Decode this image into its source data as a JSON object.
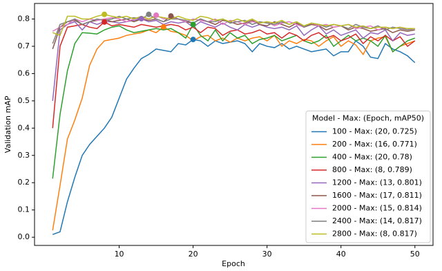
{
  "chart_data": {
    "type": "line",
    "xlabel": "Epoch",
    "ylabel": "Validation mAP",
    "legend_title": "Model - Max: (Epoch, mAP50)",
    "legend": "lower right",
    "grid": false,
    "mark_max": true,
    "x": [
      1,
      2,
      3,
      4,
      5,
      6,
      7,
      8,
      9,
      10,
      11,
      12,
      13,
      14,
      15,
      16,
      17,
      18,
      19,
      20,
      21,
      22,
      23,
      24,
      25,
      26,
      27,
      28,
      29,
      30,
      31,
      32,
      33,
      34,
      35,
      36,
      37,
      38,
      39,
      40,
      41,
      42,
      43,
      44,
      45,
      46,
      47,
      48,
      49,
      50
    ],
    "xlim": [
      -1.45,
      52.45
    ],
    "xticks": [
      10,
      20,
      30,
      40,
      50
    ],
    "ylim": [
      -0.03,
      0.857
    ],
    "yticks": [
      {
        "value": 0,
        "label": "0.0"
      },
      0.1,
      0.2,
      0.3,
      0.4,
      0.5,
      0.6,
      0.7,
      0.8
    ],
    "series": [
      {
        "name": "100 - Max: (20, 0.725)",
        "color": "#1f77b4",
        "values": [
          0.01,
          0.02,
          0.13,
          0.22,
          0.3,
          0.34,
          0.37,
          0.4,
          0.44,
          0.51,
          0.58,
          0.62,
          0.655,
          0.67,
          0.69,
          0.685,
          0.68,
          0.71,
          0.705,
          0.725,
          0.72,
          0.7,
          0.72,
          0.71,
          0.715,
          0.72,
          0.71,
          0.68,
          0.71,
          0.7,
          0.695,
          0.71,
          0.69,
          0.7,
          0.69,
          0.68,
          0.685,
          0.69,
          0.665,
          0.68,
          0.68,
          0.72,
          0.7,
          0.66,
          0.655,
          0.71,
          0.69,
          0.68,
          0.665,
          0.64
        ]
      },
      {
        "name": "200 - Max: (16, 0.771)",
        "color": "#ff7f0e",
        "values": [
          0.025,
          0.19,
          0.36,
          0.43,
          0.51,
          0.63,
          0.69,
          0.72,
          0.725,
          0.73,
          0.74,
          0.745,
          0.75,
          0.76,
          0.75,
          0.771,
          0.755,
          0.75,
          0.74,
          0.72,
          0.735,
          0.74,
          0.72,
          0.73,
          0.715,
          0.73,
          0.72,
          0.73,
          0.735,
          0.72,
          0.74,
          0.7,
          0.72,
          0.71,
          0.725,
          0.72,
          0.7,
          0.72,
          0.735,
          0.7,
          0.72,
          0.705,
          0.67,
          0.72,
          0.73,
          0.735,
          0.68,
          0.7,
          0.71,
          0.72
        ]
      },
      {
        "name": "400 - Max: (20, 0.78)",
        "color": "#2ca02c",
        "values": [
          0.215,
          0.45,
          0.61,
          0.71,
          0.75,
          0.748,
          0.745,
          0.76,
          0.77,
          0.775,
          0.76,
          0.75,
          0.755,
          0.76,
          0.765,
          0.76,
          0.765,
          0.75,
          0.73,
          0.78,
          0.74,
          0.72,
          0.76,
          0.72,
          0.75,
          0.73,
          0.74,
          0.71,
          0.725,
          0.73,
          0.74,
          0.72,
          0.73,
          0.74,
          0.72,
          0.71,
          0.72,
          0.74,
          0.7,
          0.72,
          0.74,
          0.72,
          0.73,
          0.72,
          0.7,
          0.74,
          0.68,
          0.7,
          0.72,
          0.73
        ]
      },
      {
        "name": "800 - Max: (8, 0.789)",
        "color": "#d62728",
        "values": [
          0.4,
          0.7,
          0.77,
          0.775,
          0.78,
          0.77,
          0.765,
          0.789,
          0.775,
          0.78,
          0.775,
          0.77,
          0.78,
          0.775,
          0.77,
          0.775,
          0.78,
          0.775,
          0.76,
          0.77,
          0.75,
          0.77,
          0.765,
          0.74,
          0.755,
          0.76,
          0.745,
          0.75,
          0.76,
          0.745,
          0.75,
          0.73,
          0.75,
          0.74,
          0.72,
          0.74,
          0.75,
          0.73,
          0.74,
          0.72,
          0.73,
          0.745,
          0.71,
          0.735,
          0.72,
          0.74,
          0.72,
          0.735,
          0.7,
          0.72
        ]
      },
      {
        "name": "1200 - Max: (13, 0.801)",
        "color": "#9467bd",
        "values": [
          0.5,
          0.76,
          0.78,
          0.79,
          0.76,
          0.79,
          0.78,
          0.79,
          0.79,
          0.785,
          0.79,
          0.795,
          0.801,
          0.79,
          0.795,
          0.78,
          0.79,
          0.785,
          0.79,
          0.77,
          0.79,
          0.78,
          0.77,
          0.785,
          0.77,
          0.76,
          0.78,
          0.77,
          0.78,
          0.77,
          0.765,
          0.77,
          0.76,
          0.775,
          0.74,
          0.76,
          0.775,
          0.745,
          0.76,
          0.74,
          0.75,
          0.76,
          0.73,
          0.75,
          0.745,
          0.76,
          0.72,
          0.75,
          0.74,
          0.745
        ]
      },
      {
        "name": "1600 - Max: (17, 0.811)",
        "color": "#8c564b",
        "values": [
          0.69,
          0.77,
          0.79,
          0.795,
          0.78,
          0.79,
          0.795,
          0.8,
          0.79,
          0.795,
          0.8,
          0.79,
          0.8,
          0.795,
          0.8,
          0.79,
          0.811,
          0.8,
          0.79,
          0.785,
          0.8,
          0.79,
          0.78,
          0.795,
          0.79,
          0.78,
          0.785,
          0.795,
          0.78,
          0.775,
          0.79,
          0.78,
          0.77,
          0.785,
          0.77,
          0.78,
          0.775,
          0.76,
          0.77,
          0.775,
          0.76,
          0.77,
          0.765,
          0.755,
          0.76,
          0.765,
          0.75,
          0.76,
          0.755,
          0.76
        ]
      },
      {
        "name": "2000 - Max: (15, 0.814)",
        "color": "#e377c2",
        "values": [
          0.755,
          0.77,
          0.78,
          0.8,
          0.79,
          0.8,
          0.795,
          0.8,
          0.805,
          0.8,
          0.79,
          0.8,
          0.805,
          0.8,
          0.814,
          0.8,
          0.805,
          0.8,
          0.79,
          0.8,
          0.795,
          0.79,
          0.8,
          0.78,
          0.795,
          0.79,
          0.78,
          0.79,
          0.785,
          0.79,
          0.775,
          0.785,
          0.79,
          0.78,
          0.77,
          0.785,
          0.775,
          0.78,
          0.77,
          0.775,
          0.78,
          0.765,
          0.77,
          0.775,
          0.76,
          0.77,
          0.765,
          0.77,
          0.76,
          0.765
        ]
      },
      {
        "name": "2400 - Max: (14, 0.817)",
        "color": "#7f7f7f",
        "values": [
          0.71,
          0.78,
          0.79,
          0.8,
          0.78,
          0.79,
          0.8,
          0.795,
          0.8,
          0.81,
          0.8,
          0.805,
          0.8,
          0.817,
          0.8,
          0.79,
          0.8,
          0.8,
          0.795,
          0.785,
          0.8,
          0.79,
          0.79,
          0.8,
          0.785,
          0.79,
          0.795,
          0.78,
          0.79,
          0.785,
          0.78,
          0.79,
          0.78,
          0.79,
          0.77,
          0.785,
          0.78,
          0.77,
          0.78,
          0.775,
          0.765,
          0.78,
          0.77,
          0.765,
          0.775,
          0.76,
          0.77,
          0.765,
          0.76,
          0.765
        ]
      },
      {
        "name": "2800 - Max: (8, 0.817)",
        "color": "#bcbd22",
        "values": [
          0.75,
          0.74,
          0.81,
          0.81,
          0.8,
          0.8,
          0.81,
          0.817,
          0.81,
          0.805,
          0.81,
          0.8,
          0.81,
          0.8,
          0.81,
          0.805,
          0.8,
          0.81,
          0.8,
          0.795,
          0.81,
          0.805,
          0.795,
          0.8,
          0.79,
          0.8,
          0.79,
          0.8,
          0.785,
          0.79,
          0.785,
          0.795,
          0.78,
          0.79,
          0.775,
          0.785,
          0.78,
          0.775,
          0.78,
          0.775,
          0.78,
          0.77,
          0.775,
          0.765,
          0.77,
          0.77,
          0.765,
          0.77,
          0.765,
          0.765
        ]
      }
    ]
  }
}
